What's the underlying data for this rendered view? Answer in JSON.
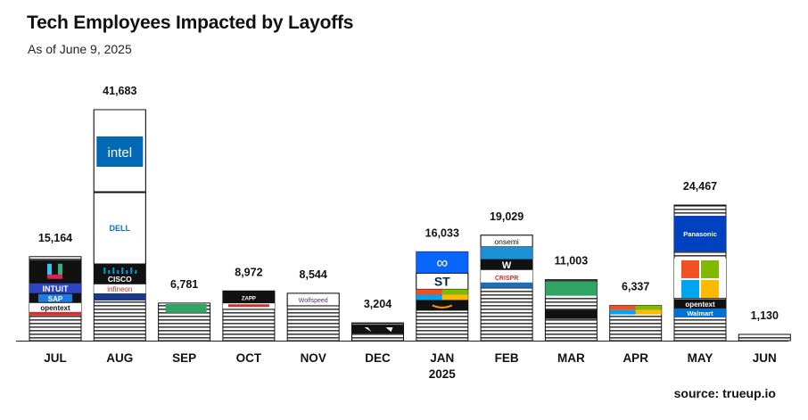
{
  "header": {
    "title": "Tech Employees Impacted by Layoffs",
    "subtitle": "As of June 9, 2025"
  },
  "footer": {
    "source": "source: trueup.io"
  },
  "chart_data": {
    "type": "bar",
    "title": "Tech Employees Impacted by Layoffs",
    "subtitle": "As of June 9, 2025",
    "categories": [
      "JUL",
      "AUG",
      "SEP",
      "OCT",
      "NOV",
      "DEC",
      "JAN",
      "FEB",
      "MAR",
      "APR",
      "MAY",
      "JUN"
    ],
    "category_sublabels": [
      "",
      "",
      "",
      "",
      "",
      "",
      "2025",
      "",
      "",
      "",
      "",
      ""
    ],
    "values": [
      15164,
      41683,
      6781,
      8972,
      8544,
      3204,
      16033,
      19029,
      11003,
      6337,
      24467,
      1130
    ],
    "value_labels": [
      "15,164",
      "41,683",
      "6,781",
      "8,972",
      "8,544",
      "3,204",
      "16,033",
      "19,029",
      "11,003",
      "6,337",
      "24,467",
      "1,130"
    ],
    "ylim": [
      0,
      41683
    ],
    "grid": false,
    "legend": "none",
    "bar_style": "stacked company segments with horizontal stripes",
    "logos": [
      [
        "INTUIT",
        "SAP",
        "opentext"
      ],
      [
        "intel",
        "DELL",
        "CISCO",
        "infineon"
      ],
      [],
      [
        "ZAPP"
      ],
      [
        "Wolfspeed"
      ],
      [],
      [
        "Meta",
        "ST"
      ],
      [
        "onsemi",
        "CRISPR"
      ],
      [],
      [],
      [
        "Panasonic",
        "opentext",
        "Walmart"
      ],
      []
    ],
    "source": "source: trueup.io"
  }
}
